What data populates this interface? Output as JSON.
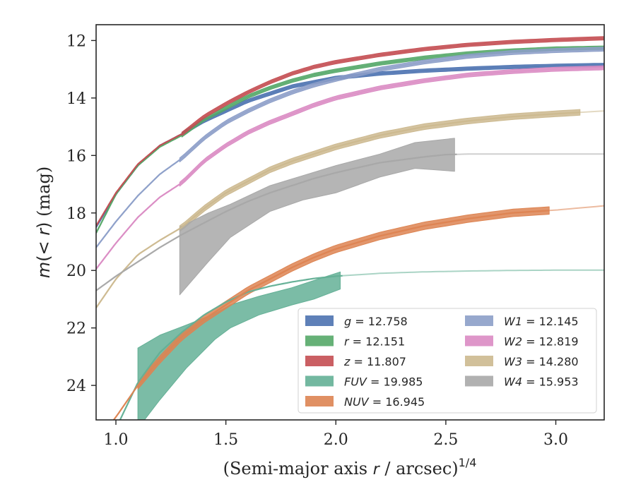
{
  "chart_data": {
    "type": "line",
    "xlabel": "(Semi-major axis r / arcsec)^1/4",
    "ylabel": "m(< r) (mag)",
    "xlim": [
      0.91,
      3.22
    ],
    "ylim": [
      25.2,
      11.45
    ],
    "y_inverted": true,
    "xticks": [
      1.0,
      1.5,
      2.0,
      2.5,
      3.0
    ],
    "xtick_labels": [
      "1.0",
      "1.5",
      "2.0",
      "2.5",
      "3.0"
    ],
    "yticks": [
      12,
      14,
      16,
      18,
      20,
      22,
      24
    ],
    "ytick_labels": [
      "12",
      "14",
      "16",
      "18",
      "20",
      "22",
      "24"
    ],
    "grid": false,
    "legend_position": "lower-right",
    "legend_columns": 2,
    "series": [
      {
        "name": "g = 12.758",
        "label_var": "g",
        "label_val": "12.758",
        "color": "#4c72b0",
        "x": [
          0.91,
          1.0,
          1.1,
          1.2,
          1.3,
          1.4,
          1.5,
          1.6,
          1.7,
          1.8,
          1.9,
          2.0,
          2.2,
          2.4,
          2.6,
          2.8,
          3.0,
          3.22
        ],
        "y": [
          18.5,
          17.35,
          16.35,
          15.65,
          15.25,
          14.8,
          14.45,
          14.1,
          13.85,
          13.6,
          13.45,
          13.3,
          13.15,
          13.05,
          12.98,
          12.92,
          12.88,
          12.85
        ],
        "band_x": [
          1.3,
          1.6,
          2.0,
          2.5,
          3.0,
          3.22
        ],
        "band_half": 0.06,
        "bright_from": 1.3
      },
      {
        "name": "r = 12.151",
        "label_var": "r",
        "label_val": "12.151",
        "color": "#55a868",
        "x": [
          0.91,
          1.0,
          1.1,
          1.2,
          1.3,
          1.4,
          1.5,
          1.6,
          1.7,
          1.8,
          1.9,
          2.0,
          2.2,
          2.4,
          2.6,
          2.8,
          3.0,
          3.22
        ],
        "y": [
          18.7,
          17.35,
          16.35,
          15.7,
          15.3,
          14.75,
          14.35,
          13.95,
          13.65,
          13.4,
          13.2,
          13.05,
          12.8,
          12.6,
          12.45,
          12.35,
          12.28,
          12.25
        ],
        "band_x": [
          1.3,
          1.6,
          2.0,
          2.5,
          3.0,
          3.22
        ],
        "band_half": 0.06,
        "bright_from": 1.3
      },
      {
        "name": "z = 11.807",
        "label_var": "z",
        "label_val": "11.807",
        "color": "#c44e52",
        "x": [
          0.91,
          1.0,
          1.1,
          1.2,
          1.3,
          1.4,
          1.5,
          1.6,
          1.7,
          1.8,
          1.9,
          2.0,
          2.2,
          2.4,
          2.6,
          2.8,
          3.0,
          3.22
        ],
        "y": [
          18.45,
          17.3,
          16.3,
          15.65,
          15.25,
          14.65,
          14.2,
          13.8,
          13.45,
          13.15,
          12.92,
          12.75,
          12.5,
          12.3,
          12.15,
          12.05,
          11.98,
          11.92
        ],
        "band_x": [
          1.3,
          1.6,
          2.0,
          2.5,
          3.0,
          3.22
        ],
        "band_half": 0.06,
        "bright_from": 1.3
      },
      {
        "name": "FUV = 19.985",
        "label_var": "FUV",
        "label_val": "19.985",
        "color": "#64b096",
        "x": [
          0.91,
          1.0,
          1.1,
          1.2,
          1.3,
          1.4,
          1.5,
          1.6,
          1.7,
          1.8,
          1.9,
          2.0,
          2.2,
          2.4,
          2.6,
          2.8,
          3.0,
          3.22
        ],
        "y": [
          27.5,
          25.5,
          23.9,
          22.85,
          22.15,
          21.55,
          21.1,
          20.75,
          20.55,
          20.4,
          20.28,
          20.2,
          20.1,
          20.05,
          20.02,
          20.0,
          19.99,
          19.99
        ],
        "band_x": [
          1.1,
          1.2,
          1.32,
          1.45,
          1.52,
          1.65,
          1.8,
          1.9,
          2.02
        ],
        "band_upper": [
          22.7,
          22.25,
          21.9,
          21.5,
          21.2,
          20.9,
          20.6,
          20.35,
          20.05
        ],
        "band_lower": [
          25.5,
          24.5,
          23.4,
          22.4,
          22.0,
          21.55,
          21.2,
          21.0,
          20.65
        ],
        "bright_from": 2.03
      },
      {
        "name": "NUV = 16.945",
        "label_var": "NUV",
        "label_val": "16.945",
        "color": "#dd8452",
        "x": [
          0.91,
          1.0,
          1.1,
          1.2,
          1.3,
          1.4,
          1.5,
          1.6,
          1.7,
          1.8,
          1.9,
          2.0,
          2.2,
          2.4,
          2.6,
          2.8,
          3.0,
          3.22
        ],
        "y": [
          26.0,
          25.1,
          24.0,
          23.1,
          22.3,
          21.7,
          21.2,
          20.7,
          20.3,
          19.9,
          19.55,
          19.25,
          18.8,
          18.45,
          18.2,
          18.0,
          17.9,
          17.75
        ],
        "band_x": [
          1.1,
          1.2,
          1.3,
          1.4,
          1.5,
          1.6,
          1.7,
          1.8,
          1.9,
          2.0,
          2.2,
          2.4,
          2.6,
          2.8,
          2.97
        ],
        "band_half": 0.13,
        "bright_from": 2.97
      },
      {
        "name": "W1 = 12.145",
        "label_var": "W1",
        "label_val": "12.145",
        "color": "#8c9ec8",
        "x": [
          0.91,
          1.0,
          1.1,
          1.2,
          1.3,
          1.4,
          1.5,
          1.6,
          1.7,
          1.8,
          1.9,
          2.0,
          2.2,
          2.4,
          2.6,
          2.8,
          3.0,
          3.22
        ],
        "y": [
          19.2,
          18.3,
          17.4,
          16.65,
          16.1,
          15.4,
          14.85,
          14.45,
          14.1,
          13.8,
          13.55,
          13.35,
          13.0,
          12.75,
          12.55,
          12.42,
          12.35,
          12.3
        ],
        "band_x": [
          1.29,
          1.4,
          1.6,
          1.8,
          2.0,
          2.5,
          3.0,
          3.22
        ],
        "band_half": 0.07,
        "bright_from": 1.29
      },
      {
        "name": "W2 = 12.819",
        "label_var": "W2",
        "label_val": "12.819",
        "color": "#da8bc3",
        "x": [
          0.91,
          1.0,
          1.1,
          1.2,
          1.3,
          1.4,
          1.5,
          1.6,
          1.7,
          1.8,
          1.9,
          2.0,
          2.2,
          2.4,
          2.6,
          2.8,
          3.0,
          3.22
        ],
        "y": [
          19.95,
          19.05,
          18.15,
          17.45,
          16.95,
          16.2,
          15.65,
          15.2,
          14.85,
          14.55,
          14.25,
          14.0,
          13.65,
          13.4,
          13.2,
          13.08,
          13.0,
          12.95
        ],
        "band_x": [
          1.29,
          1.4,
          1.6,
          1.8,
          2.0,
          2.5,
          3.0,
          3.22
        ],
        "band_half": 0.07,
        "bright_from": 1.29
      },
      {
        "name": "W3 = 14.280",
        "label_var": "W3",
        "label_val": "14.280",
        "color": "#ccb98f",
        "x": [
          0.91,
          1.0,
          1.1,
          1.2,
          1.3,
          1.4,
          1.5,
          1.6,
          1.7,
          1.8,
          1.9,
          2.0,
          2.2,
          2.4,
          2.6,
          2.8,
          3.0,
          3.22
        ],
        "y": [
          21.3,
          20.3,
          19.45,
          18.95,
          18.5,
          17.85,
          17.3,
          16.9,
          16.5,
          16.2,
          15.95,
          15.7,
          15.3,
          15.0,
          14.8,
          14.65,
          14.55,
          14.45
        ],
        "band_x": [
          1.29,
          1.4,
          1.5,
          1.6,
          1.7,
          1.8,
          1.9,
          2.0,
          2.2,
          2.4,
          2.6,
          2.8,
          3.0,
          3.11
        ],
        "band_half": 0.1,
        "bright_from": 3.11
      },
      {
        "name": "W4 = 15.953",
        "label_var": "W4",
        "label_val": "15.953",
        "color": "#a8a8a8",
        "x": [
          0.91,
          1.0,
          1.1,
          1.2,
          1.3,
          1.4,
          1.5,
          1.6,
          1.7,
          1.8,
          1.9,
          2.0,
          2.2,
          2.4,
          2.5,
          2.6,
          2.8,
          3.0,
          3.22
        ],
        "y": [
          20.7,
          20.2,
          19.7,
          19.2,
          18.75,
          18.35,
          17.95,
          17.6,
          17.3,
          17.05,
          16.8,
          16.6,
          16.25,
          16.05,
          15.97,
          15.95,
          15.95,
          15.95,
          15.95
        ],
        "band_x": [
          1.29,
          1.42,
          1.52,
          1.7,
          1.85,
          2.0,
          2.2,
          2.36,
          2.54
        ],
        "band_upper": [
          18.5,
          18.0,
          17.7,
          17.05,
          16.7,
          16.35,
          15.95,
          15.55,
          15.4
        ],
        "band_lower": [
          20.85,
          19.7,
          18.85,
          17.95,
          17.55,
          17.3,
          16.75,
          16.45,
          16.55
        ],
        "bright_from": 2.55
      }
    ]
  }
}
